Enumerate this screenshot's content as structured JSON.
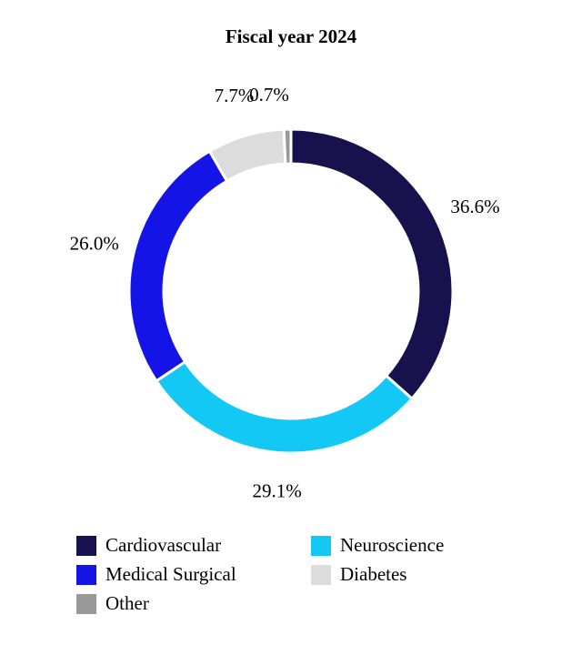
{
  "chart_data": {
    "type": "donut",
    "title": "Fiscal year 2024",
    "categories": [
      "Cardiovascular",
      "Neuroscience",
      "Medical Surgical",
      "Diabetes",
      "Other"
    ],
    "values": [
      36.6,
      29.1,
      26.0,
      7.7,
      0.7
    ],
    "value_labels": [
      "36.6%",
      "29.1%",
      "26.0%",
      "7.7%",
      "0.7%"
    ],
    "colors": [
      "#17114d",
      "#13c8f5",
      "#1414e6",
      "#dcdcdc",
      "#999999"
    ],
    "legend": "bottom"
  }
}
